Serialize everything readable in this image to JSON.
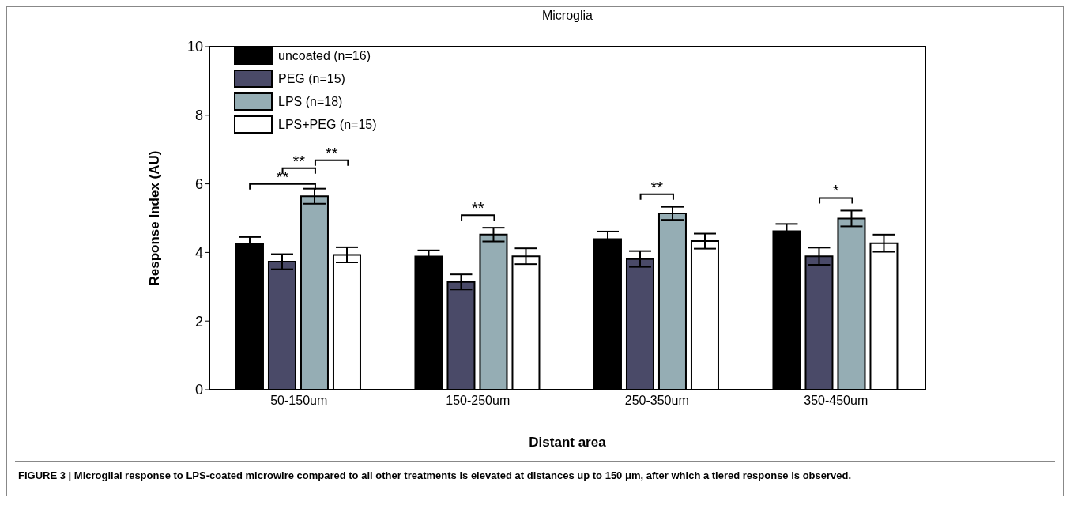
{
  "chart_data": {
    "type": "bar",
    "title": "Microglia",
    "xlabel": "Distant area",
    "ylabel": "Response Index (AU)",
    "categories": [
      "50-150um",
      "150-250um",
      "250-350um",
      "350-450um"
    ],
    "series": [
      {
        "name": "uncoated (n=16)",
        "color": "#000000",
        "values": [
          4.25,
          3.88,
          4.39,
          4.62
        ],
        "errors": [
          0.2,
          0.18,
          0.22,
          0.21
        ]
      },
      {
        "name": "PEG (n=15)",
        "color": "#4a4a68",
        "values": [
          3.73,
          3.14,
          3.81,
          3.89
        ],
        "errors": [
          0.22,
          0.22,
          0.23,
          0.25
        ]
      },
      {
        "name": "LPS (n=18)",
        "color": "#95adb4",
        "values": [
          5.64,
          4.52,
          5.14,
          4.99
        ],
        "errors": [
          0.22,
          0.2,
          0.19,
          0.23
        ]
      },
      {
        "name": "LPS+PEG (n=15)",
        "color": "#ffffff",
        "values": [
          3.93,
          3.89,
          4.33,
          4.27
        ],
        "errors": [
          0.22,
          0.23,
          0.22,
          0.25
        ]
      }
    ],
    "ylim": [
      0,
      10
    ],
    "yticks": [
      0,
      2,
      4,
      6,
      8,
      10
    ],
    "grid": false,
    "legend": "top left",
    "annotations": [
      "**",
      "**",
      "**",
      "**",
      "**",
      "*",
      "FIGURE 3 | Microglial response to LPS-coated microwire compared to all other treatments is elevated at distances up to 150 μm, after which a tiered response is observed."
    ]
  }
}
